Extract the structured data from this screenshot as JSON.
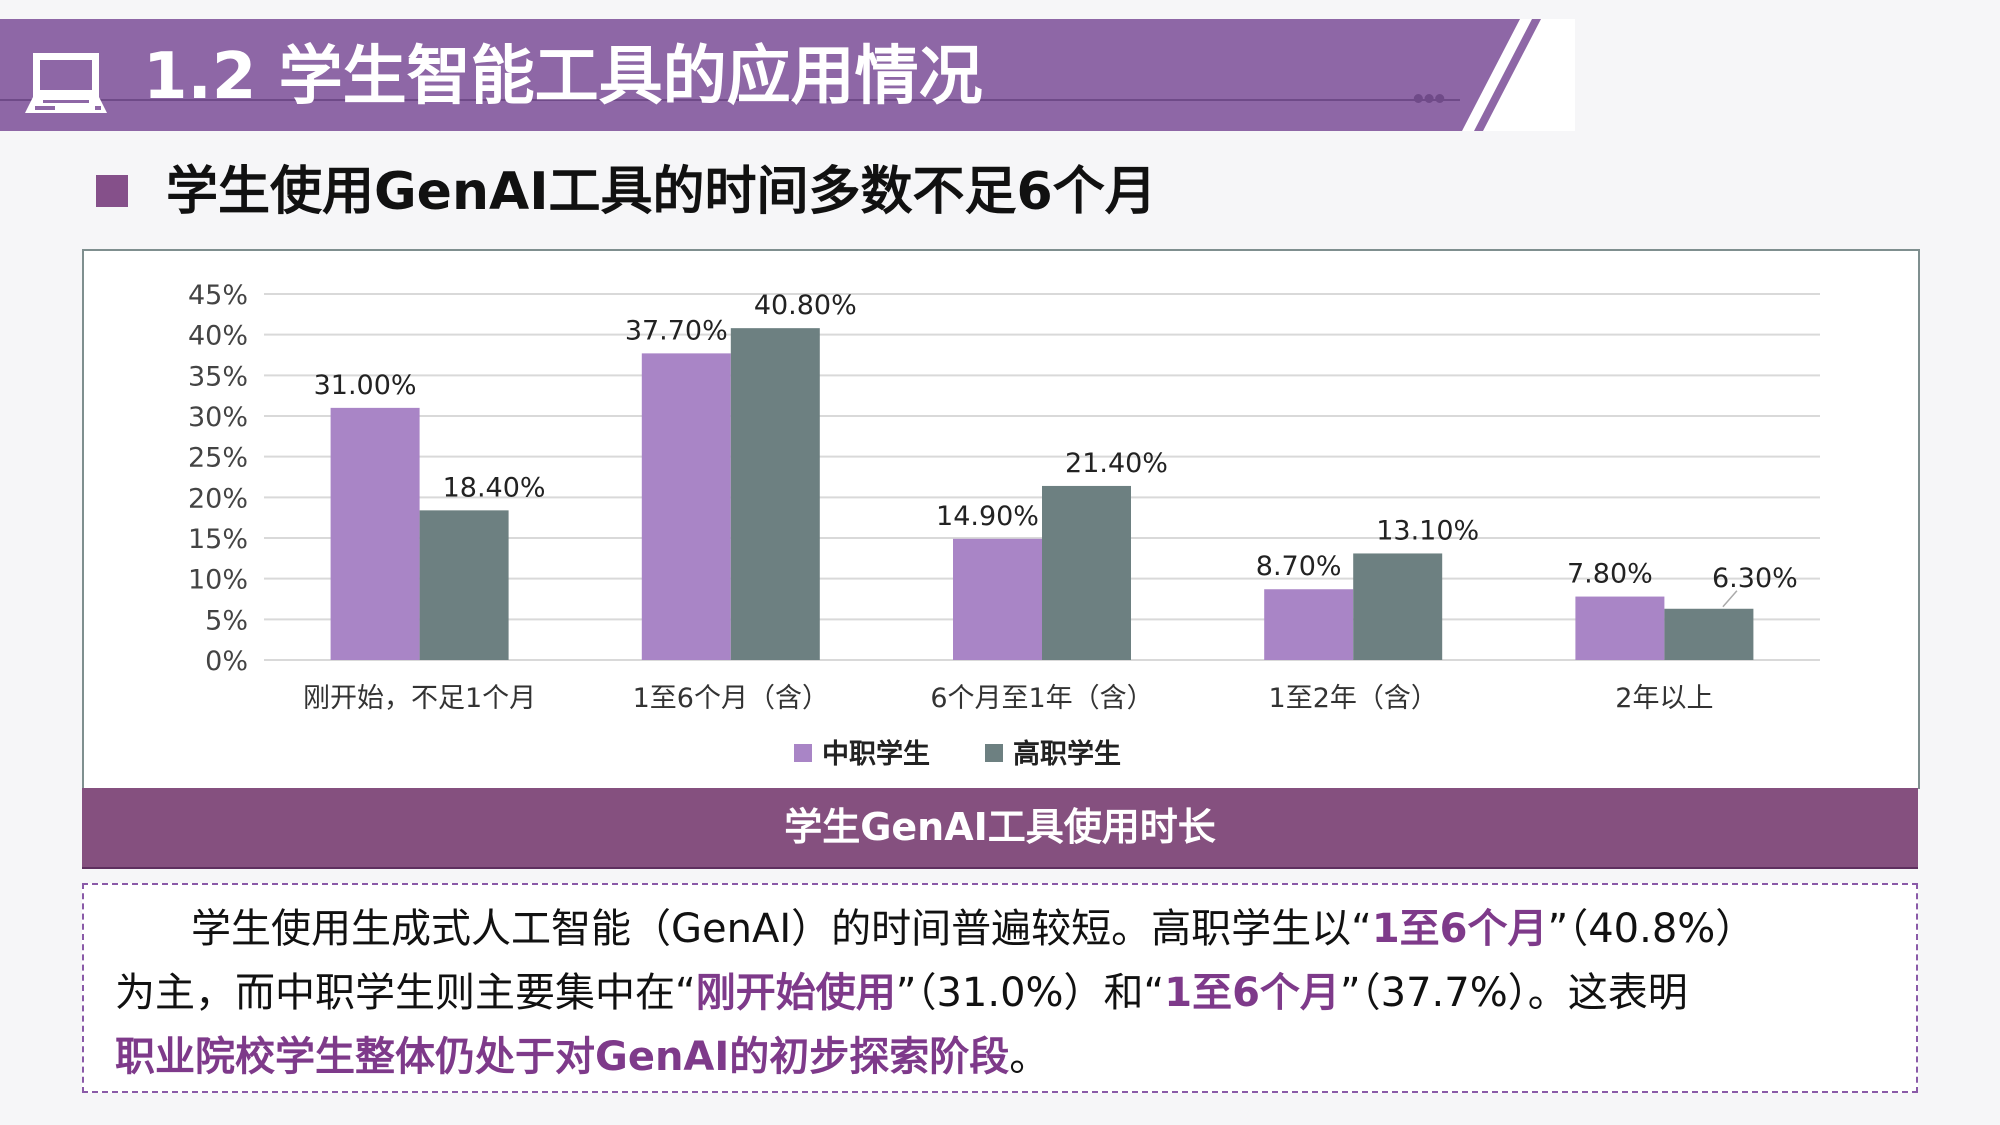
{
  "header": {
    "title": "1.2 学生智能工具的应用情况",
    "icon": "laptop-icon"
  },
  "subtitle": "学生使用GenAI工具的时间多数不足6个月",
  "chart_data": {
    "type": "bar",
    "categories": [
      "刚开始，不足1个月",
      "1至6个月（含）",
      "6个月至1年（含）",
      "1至2年（含）",
      "2年以上"
    ],
    "series": [
      {
        "name": "中职学生",
        "values": [
          31.0,
          37.7,
          14.9,
          8.7,
          7.8
        ],
        "labels": [
          "31.00%",
          "37.70%",
          "14.90%",
          "8.70%",
          "7.80%"
        ],
        "color": "#a985c6"
      },
      {
        "name": "高职学生",
        "values": [
          18.4,
          40.8,
          21.4,
          13.1,
          6.3
        ],
        "labels": [
          "18.40%",
          "40.80%",
          "21.40%",
          "13.10%",
          "6.30%"
        ],
        "color": "#6d8081"
      }
    ],
    "yticks": [
      "0%",
      "5%",
      "10%",
      "15%",
      "20%",
      "25%",
      "30%",
      "35%",
      "40%",
      "45%"
    ],
    "ylim": [
      0,
      45
    ],
    "grid": true,
    "legend": "bottom"
  },
  "caption": "学生GenAI工具使用时长",
  "summary": {
    "l1a": "学生使用生成式人工智能（GenAI）的时间普遍较短。高职学生以“",
    "l1b": "1至6个月",
    "l1c": "”（40.8%）",
    "l2a": "为主，而中职学生则主要集中在“",
    "l2b": "刚开始使用",
    "l2c": "”（31.0%）和“",
    "l2d": "1至6个月",
    "l2e": "”（37.7%）。这表明",
    "l3a": "职业院校学生整体仍处于对GenAI的初步探索阶段",
    "l3b": "。"
  }
}
